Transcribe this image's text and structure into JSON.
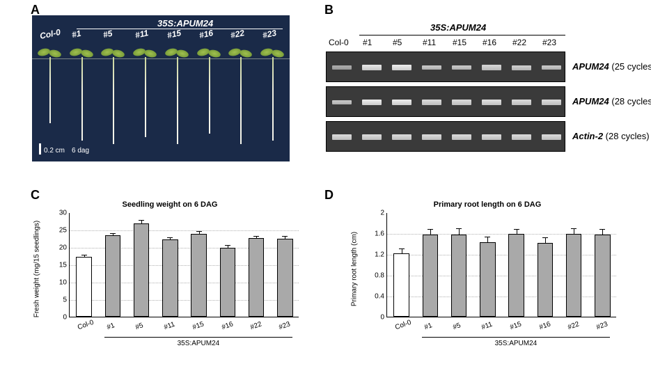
{
  "panelA": {
    "label": "A",
    "title": "35S:APUM24",
    "lanes": [
      "Col-0",
      "#1",
      "#5",
      "#11",
      "#15",
      "#16",
      "#22",
      "#23"
    ],
    "scale_text": "0.2 cm",
    "dag_text": "6 dag",
    "root_heights": [
      95,
      120,
      125,
      115,
      125,
      110,
      125,
      120
    ],
    "bg_color": "#1a2a48"
  },
  "panelB": {
    "label": "B",
    "title": "35S:APUM24",
    "lanes": [
      "Col-0",
      "#1",
      "#5",
      "#11",
      "#15",
      "#16",
      "#22",
      "#23"
    ],
    "rows": [
      {
        "gene": "APUM24",
        "cycles": "(25 cycles)",
        "intensities": [
          0.45,
          0.95,
          1.0,
          0.7,
          0.7,
          0.8,
          0.75,
          0.7
        ]
      },
      {
        "gene": "APUM24",
        "cycles": "(28 cycles)",
        "intensities": [
          0.7,
          1.0,
          1.0,
          0.85,
          0.85,
          0.9,
          0.85,
          0.85
        ]
      },
      {
        "gene": "Actin-2",
        "cycles": "(28 cycles)",
        "intensities": [
          0.85,
          0.85,
          0.85,
          0.85,
          0.85,
          0.85,
          0.85,
          0.85
        ]
      }
    ],
    "band_color": "#e6e6e6",
    "gel_bg": "#3a3a3a"
  },
  "chartC": {
    "label": "C",
    "title": "Seedling weight on 6 DAG",
    "ylabel": "Fresh weight (mg/15 seedlings)",
    "ylim": [
      0,
      30
    ],
    "ytick_step": 5,
    "categories": [
      "Col-0",
      "#1",
      "#5",
      "#11",
      "#15",
      "#16",
      "#22",
      "#23"
    ],
    "values": [
      17.3,
      23.4,
      26.8,
      22.2,
      23.9,
      19.8,
      22.7,
      22.5
    ],
    "errors": [
      0.7,
      0.9,
      1.3,
      0.8,
      0.9,
      1.0,
      0.8,
      0.9
    ],
    "bar_colors": [
      "#ffffff",
      "#a9a9a9",
      "#a9a9a9",
      "#a9a9a9",
      "#a9a9a9",
      "#a9a9a9",
      "#a9a9a9",
      "#a9a9a9"
    ],
    "group_label": "35S:APUM24",
    "grid_color": "#b0b0b0"
  },
  "chartD": {
    "label": "D",
    "title": "Primary root length on 6 DAG",
    "ylabel": "Primary root length (cm)",
    "ylim": [
      0,
      2
    ],
    "ytick_step": 0.4,
    "categories": [
      "Col-0",
      "#1",
      "#5",
      "#11",
      "#15",
      "#16",
      "#22",
      "#23"
    ],
    "values": [
      1.21,
      1.58,
      1.58,
      1.43,
      1.59,
      1.42,
      1.59,
      1.57
    ],
    "errors": [
      0.11,
      0.11,
      0.13,
      0.12,
      0.1,
      0.11,
      0.12,
      0.12
    ],
    "bar_colors": [
      "#ffffff",
      "#a9a9a9",
      "#a9a9a9",
      "#a9a9a9",
      "#a9a9a9",
      "#a9a9a9",
      "#a9a9a9",
      "#a9a9a9"
    ],
    "group_label": "35S:APUM24",
    "grid_color": "#b0b0b0"
  }
}
